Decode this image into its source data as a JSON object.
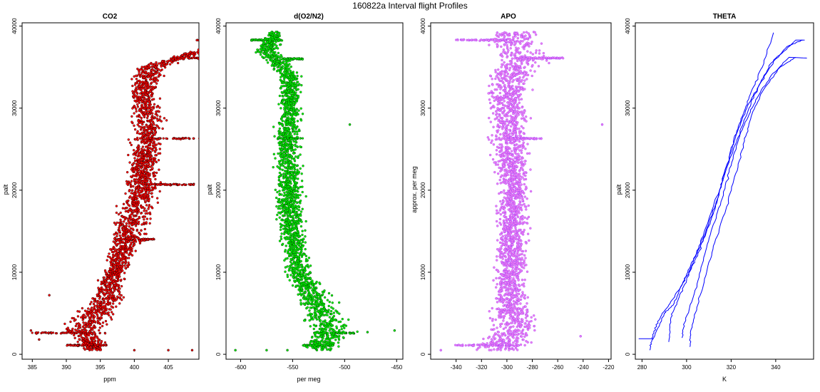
{
  "figure": {
    "title": "160822a   Interval flight Profiles"
  },
  "chart_data": [
    {
      "type": "scatter",
      "title": "CO2",
      "xlabel": "ppm",
      "ylabel": "palt",
      "xlim": [
        383.5,
        409.5
      ],
      "ylim": [
        -600,
        40400
      ],
      "xticks": [
        385,
        390,
        395,
        400,
        405
      ],
      "yticks": [
        0,
        10000,
        20000,
        30000,
        40000
      ],
      "fill_color": "#ff0000",
      "edge_color": "#000000",
      "envelope": [
        [
          1000,
          392,
          396
        ],
        [
          3000,
          388,
          396
        ],
        [
          5000,
          391,
          398
        ],
        [
          7000,
          393,
          399
        ],
        [
          10000,
          395,
          399
        ],
        [
          13000,
          396,
          401
        ],
        [
          16000,
          396,
          403
        ],
        [
          20000,
          398,
          404
        ],
        [
          24000,
          399,
          404
        ],
        [
          28000,
          399,
          405
        ],
        [
          32000,
          399,
          404
        ],
        [
          35000,
          400,
          405
        ],
        [
          38000,
          412,
          415
        ]
      ],
      "outliers": [
        [
          384.8,
          2900
        ],
        [
          386,
          1800
        ],
        [
          408.5,
          500
        ],
        [
          405,
          500
        ],
        [
          400,
          500
        ],
        [
          387.5,
          7200
        ]
      ],
      "bands": [
        [
          2600,
          384.5,
          396
        ],
        [
          1100,
          390,
          396
        ],
        [
          36100,
          408,
          414
        ],
        [
          26300,
          402,
          411
        ],
        [
          20700,
          401,
          409
        ],
        [
          14000,
          397,
          403
        ],
        [
          38300,
          409,
          415
        ]
      ]
    },
    {
      "type": "scatter",
      "title": "d(O2/N2)",
      "xlabel": "per meg",
      "ylabel": "palt",
      "xlim": [
        -614,
        -444
      ],
      "ylim": [
        -600,
        40400
      ],
      "xticks": [
        -600,
        -550,
        -500,
        -450
      ],
      "yticks": [
        0,
        10000,
        20000,
        30000,
        40000
      ],
      "fill_color": "#00ee00",
      "edge_color": "#003300",
      "envelope": [
        [
          1000,
          -540,
          -505
        ],
        [
          3000,
          -540,
          -485
        ],
        [
          5000,
          -545,
          -500
        ],
        [
          7000,
          -550,
          -510
        ],
        [
          10000,
          -560,
          -530
        ],
        [
          14000,
          -562,
          -535
        ],
        [
          18000,
          -568,
          -538
        ],
        [
          22000,
          -568,
          -538
        ],
        [
          26000,
          -570,
          -540
        ],
        [
          30000,
          -565,
          -540
        ],
        [
          34000,
          -565,
          -540
        ],
        [
          37000,
          -590,
          -560
        ],
        [
          39000,
          -575,
          -560
        ]
      ],
      "outliers": [
        [
          -605,
          500
        ],
        [
          -452,
          2900
        ],
        [
          -495,
          28000
        ],
        [
          -478,
          2700
        ],
        [
          -575,
          500
        ],
        [
          -555,
          500
        ]
      ],
      "bands": [
        [
          1100,
          -540,
          -510
        ],
        [
          38300,
          -590,
          -560
        ],
        [
          36000,
          -560,
          -540
        ],
        [
          26300,
          -565,
          -540
        ],
        [
          2600,
          -530,
          -490
        ]
      ]
    },
    {
      "type": "scatter",
      "title": "APO",
      "xlabel": "",
      "ylabel": "approx. per meg",
      "xlim": [
        -360,
        -218
      ],
      "ylim": [
        -600,
        40400
      ],
      "xticks": [
        -340,
        -320,
        -300,
        -280,
        -260,
        -240,
        -220
      ],
      "yticks": [
        0,
        10000,
        20000,
        30000,
        40000
      ],
      "fill_color": "#ee82ee",
      "edge_color": "#9933ff",
      "envelope": [
        [
          1000,
          -330,
          -280
        ],
        [
          3000,
          -320,
          -270
        ],
        [
          6000,
          -315,
          -280
        ],
        [
          10000,
          -312,
          -282
        ],
        [
          14000,
          -310,
          -282
        ],
        [
          18000,
          -310,
          -280
        ],
        [
          22000,
          -312,
          -280
        ],
        [
          26000,
          -315,
          -280
        ],
        [
          30000,
          -318,
          -278
        ],
        [
          34000,
          -318,
          -278
        ],
        [
          36000,
          -310,
          -260
        ],
        [
          38000,
          -320,
          -270
        ]
      ],
      "outliers": [
        [
          -352,
          500
        ],
        [
          -225,
          28000
        ],
        [
          -242,
          2200
        ],
        [
          -330,
          38300
        ],
        [
          -260,
          36100
        ]
      ],
      "bands": [
        [
          1100,
          -345,
          -290
        ],
        [
          36100,
          -285,
          -255
        ],
        [
          26300,
          -300,
          -270
        ],
        [
          38300,
          -340,
          -300
        ]
      ]
    },
    {
      "type": "line",
      "title": "THETA",
      "xlabel": "K",
      "ylabel": "palt",
      "xlim": [
        277,
        357
      ],
      "ylim": [
        -600,
        40400
      ],
      "xticks": [
        280,
        300,
        320,
        340
      ],
      "yticks": [
        0,
        10000,
        20000,
        30000,
        40000
      ],
      "line_color": "#0000ff",
      "series": [
        {
          "values": [
            [
              283.5,
              500
            ],
            [
              284.5,
              2000
            ],
            [
              287,
              4000
            ],
            [
              292,
              6000
            ],
            [
              297,
              8000
            ],
            [
              301,
              10000
            ],
            [
              305,
              12000
            ],
            [
              309,
              15000
            ],
            [
              313,
              18000
            ],
            [
              317,
              22000
            ],
            [
              321,
              26000
            ],
            [
              325,
              29000
            ],
            [
              329,
              32000
            ],
            [
              334,
              35000
            ],
            [
              339,
              39200
            ]
          ]
        },
        {
          "values": [
            [
              278.5,
              1900
            ],
            [
              285,
              1900
            ],
            [
              290,
              5000
            ],
            [
              294,
              6000
            ],
            [
              298,
              8500
            ],
            [
              302,
              11000
            ],
            [
              306,
              13000
            ],
            [
              310,
              16000
            ],
            [
              314,
              19000
            ],
            [
              318,
              23000
            ],
            [
              322,
              26500
            ],
            [
              327,
              30000
            ],
            [
              333,
              33000
            ],
            [
              340,
              36000
            ],
            [
              349,
              38300
            ],
            [
              353,
              38300
            ]
          ]
        },
        {
          "values": [
            [
              292,
              1500
            ],
            [
              293,
              4500
            ],
            [
              296,
              6500
            ],
            [
              300,
              9000
            ],
            [
              304,
              12000
            ],
            [
              308,
              15000
            ],
            [
              312,
              18000
            ],
            [
              316,
              21000
            ],
            [
              321,
              25000
            ],
            [
              326,
              28000
            ],
            [
              331,
              31000
            ],
            [
              338,
              34000
            ],
            [
              346,
              36200
            ],
            [
              354,
              36100
            ]
          ]
        },
        {
          "values": [
            [
              301.5,
              900
            ],
            [
              302,
              3000
            ],
            [
              305,
              6000
            ],
            [
              309,
              10000
            ],
            [
              313,
              14000
            ],
            [
              318,
              18000
            ],
            [
              322,
              22000
            ],
            [
              326,
              26000
            ],
            [
              329,
              29000
            ],
            [
              334,
              32000
            ],
            [
              342,
              35000
            ],
            [
              349,
              36200
            ]
          ]
        },
        {
          "values": [
            [
              298,
              2000
            ],
            [
              299,
              3800
            ],
            [
              303,
              7000
            ],
            [
              307,
              11000
            ],
            [
              311,
              15000
            ],
            [
              316,
              19000
            ],
            [
              320,
              23000
            ],
            [
              324,
              27000
            ],
            [
              328,
              30000
            ],
            [
              332,
              32500
            ],
            [
              338,
              35500
            ],
            [
              345,
              37500
            ],
            [
              352,
              38300
            ]
          ]
        }
      ]
    }
  ]
}
